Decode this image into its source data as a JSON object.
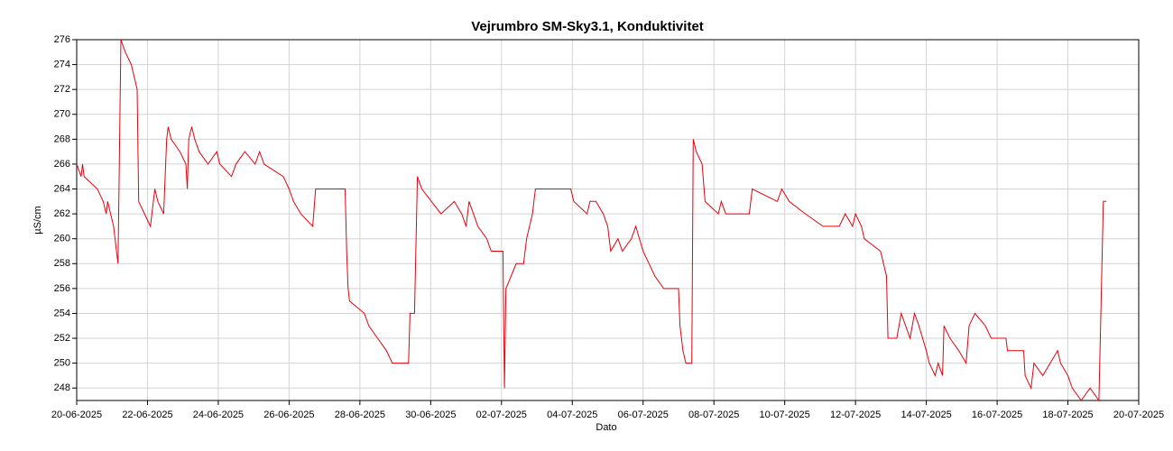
{
  "chart_data": {
    "type": "line",
    "title": "Vejrumbro SM-Sky3.1, Konduktivitet",
    "x_label": "Dato",
    "y_label": "µS/cm",
    "grid": true,
    "xlim": [
      "2025-06-20 00:00",
      "2025-07-20 00:00"
    ],
    "ylim": [
      247,
      276
    ],
    "yticks": [
      248,
      250,
      252,
      254,
      256,
      258,
      260,
      262,
      264,
      266,
      268,
      270,
      272,
      274,
      276
    ],
    "xticks": [
      {
        "value": "2025-06-20 00:00",
        "label": "20-06-2025"
      },
      {
        "value": "2025-06-22 00:00",
        "label": "22-06-2025"
      },
      {
        "value": "2025-06-24 00:00",
        "label": "24-06-2025"
      },
      {
        "value": "2025-06-26 00:00",
        "label": "26-06-2025"
      },
      {
        "value": "2025-06-28 00:00",
        "label": "28-06-2025"
      },
      {
        "value": "2025-06-30 00:00",
        "label": "30-06-2025"
      },
      {
        "value": "2025-07-02 00:00",
        "label": "02-07-2025"
      },
      {
        "value": "2025-07-04 00:00",
        "label": "04-07-2025"
      },
      {
        "value": "2025-07-06 00:00",
        "label": "06-07-2025"
      },
      {
        "value": "2025-07-08 00:00",
        "label": "08-07-2025"
      },
      {
        "value": "2025-07-10 00:00",
        "label": "10-07-2025"
      },
      {
        "value": "2025-07-12 00:00",
        "label": "12-07-2025"
      },
      {
        "value": "2025-07-14 00:00",
        "label": "14-07-2025"
      },
      {
        "value": "2025-07-16 00:00",
        "label": "16-07-2025"
      },
      {
        "value": "2025-07-18 00:00",
        "label": "18-07-2025"
      },
      {
        "value": "2025-07-20 00:00",
        "label": "20-07-2025"
      }
    ],
    "x": [
      "2025-06-20 00:00",
      "2025-06-20 03:00",
      "2025-06-20 04:00",
      "2025-06-20 05:00",
      "2025-06-20 14:00",
      "2025-06-20 18:00",
      "2025-06-20 20:00",
      "2025-06-20 21:00",
      "2025-06-20 23:00",
      "2025-06-21 01:00",
      "2025-06-21 03:00",
      "2025-06-21 04:00",
      "2025-06-21 06:00",
      "2025-06-21 09:00",
      "2025-06-21 13:00",
      "2025-06-21 15:00",
      "2025-06-21 17:00",
      "2025-06-21 18:00",
      "2025-06-21 22:00",
      "2025-06-22 02:00",
      "2025-06-22 05:00",
      "2025-06-22 07:00",
      "2025-06-22 11:00",
      "2025-06-22 13:00",
      "2025-06-22 14:00",
      "2025-06-22 16:00",
      "2025-06-22 22:00",
      "2025-06-23 02:00",
      "2025-06-23 03:00",
      "2025-06-23 04:00",
      "2025-06-23 06:00",
      "2025-06-23 08:00",
      "2025-06-23 11:00",
      "2025-06-23 17:00",
      "2025-06-23 23:00",
      "2025-06-24 01:00",
      "2025-06-24 09:00",
      "2025-06-24 12:00",
      "2025-06-24 18:00",
      "2025-06-25 01:00",
      "2025-06-25 04:00",
      "2025-06-25 07:00",
      "2025-06-25 20:00",
      "2025-06-26 00:00",
      "2025-06-26 03:00",
      "2025-06-26 08:00",
      "2025-06-26 16:00",
      "2025-06-26 18:00",
      "2025-06-27 14:00",
      "2025-06-27 15:00",
      "2025-06-27 16:00",
      "2025-06-27 17:00",
      "2025-06-28 03:00",
      "2025-06-28 06:00",
      "2025-06-28 12:00",
      "2025-06-28 18:00",
      "2025-06-28 22:00",
      "2025-06-29 09:00",
      "2025-06-29 10:00",
      "2025-06-29 13:00",
      "2025-06-29 15:00",
      "2025-06-29 18:00",
      "2025-06-30 07:00",
      "2025-06-30 16:00",
      "2025-06-30 21:00",
      "2025-07-01 00:00",
      "2025-07-01 02:00",
      "2025-07-01 05:00",
      "2025-07-01 08:00",
      "2025-07-01 14:00",
      "2025-07-01 17:00",
      "2025-07-02 01:00",
      "2025-07-02 02:00",
      "2025-07-02 03:00",
      "2025-07-02 10:00",
      "2025-07-02 15:00",
      "2025-07-02 17:00",
      "2025-07-02 21:00",
      "2025-07-02 23:00",
      "2025-07-03 23:00",
      "2025-07-04 01:00",
      "2025-07-04 10:00",
      "2025-07-04 12:00",
      "2025-07-04 16:00",
      "2025-07-04 21:00",
      "2025-07-05 00:00",
      "2025-07-05 02:00",
      "2025-07-05 07:00",
      "2025-07-05 10:00",
      "2025-07-05 16:00",
      "2025-07-05 19:00",
      "2025-07-06 00:00",
      "2025-07-06 04:00",
      "2025-07-06 08:00",
      "2025-07-06 14:00",
      "2025-07-07 00:00",
      "2025-07-07 01:00",
      "2025-07-07 03:00",
      "2025-07-07 05:00",
      "2025-07-07 09:00",
      "2025-07-07 10:00",
      "2025-07-07 12:00",
      "2025-07-07 16:00",
      "2025-07-07 18:00",
      "2025-07-08 03:00",
      "2025-07-08 05:00",
      "2025-07-08 08:00",
      "2025-07-09 00:00",
      "2025-07-09 02:00",
      "2025-07-09 19:00",
      "2025-07-09 22:00",
      "2025-07-10 03:00",
      "2025-07-10 14:00",
      "2025-07-11 02:00",
      "2025-07-11 13:00",
      "2025-07-11 17:00",
      "2025-07-11 22:00",
      "2025-07-12 00:00",
      "2025-07-12 04:00",
      "2025-07-12 06:00",
      "2025-07-12 17:00",
      "2025-07-12 21:00",
      "2025-07-12 22:00",
      "2025-07-13 04:00",
      "2025-07-13 07:00",
      "2025-07-13 10:00",
      "2025-07-13 13:00",
      "2025-07-13 16:00",
      "2025-07-13 19:00",
      "2025-07-14 00:00",
      "2025-07-14 02:00",
      "2025-07-14 06:00",
      "2025-07-14 08:00",
      "2025-07-14 11:00",
      "2025-07-14 12:00",
      "2025-07-14 16:00",
      "2025-07-14 22:00",
      "2025-07-15 03:00",
      "2025-07-15 05:00",
      "2025-07-15 09:00",
      "2025-07-15 16:00",
      "2025-07-15 20:00",
      "2025-07-16 06:00",
      "2025-07-16 07:00",
      "2025-07-16 18:00",
      "2025-07-16 19:00",
      "2025-07-16 23:00",
      "2025-07-17 01:00",
      "2025-07-17 07:00",
      "2025-07-17 12:00",
      "2025-07-17 17:00",
      "2025-07-17 19:00",
      "2025-07-18 00:00",
      "2025-07-18 03:00",
      "2025-07-18 09:00",
      "2025-07-18 15:00",
      "2025-07-18 21:00",
      "2025-07-19 00:00",
      "2025-07-19 02:00"
    ],
    "series": [
      {
        "name": "Konduktivitet",
        "color": "#e8000b",
        "values": [
          266,
          265,
          266,
          265,
          264,
          263,
          262,
          263,
          262,
          261,
          259,
          258,
          276,
          275,
          274,
          273,
          272,
          263,
          262,
          261,
          264,
          263,
          262,
          268,
          269,
          268,
          267,
          266,
          264,
          268,
          269,
          268,
          267,
          266,
          267,
          266,
          265,
          266,
          267,
          266,
          267,
          266,
          265,
          264,
          263,
          262,
          261,
          264,
          264,
          259,
          256,
          255,
          254,
          253,
          252,
          251,
          250,
          250,
          254,
          254,
          265,
          264,
          262,
          263,
          262,
          261,
          263,
          262,
          261,
          260,
          259,
          259,
          248,
          256,
          258,
          258,
          260,
          262,
          264,
          264,
          263,
          262,
          263,
          263,
          262,
          261,
          259,
          260,
          259,
          260,
          261,
          259,
          258,
          257,
          256,
          256,
          253,
          251,
          250,
          250,
          268,
          267,
          266,
          263,
          262,
          263,
          262,
          262,
          264,
          263,
          264,
          263,
          262,
          261,
          261,
          262,
          261,
          262,
          261,
          260,
          259,
          257,
          252,
          252,
          254,
          253,
          252,
          254,
          253,
          251,
          250,
          249,
          250,
          249,
          253,
          252,
          251,
          250,
          253,
          254,
          253,
          252,
          252,
          251,
          251,
          249,
          248,
          250,
          249,
          250,
          251,
          250,
          249,
          248,
          247,
          248,
          247,
          263,
          263
        ]
      }
    ]
  }
}
